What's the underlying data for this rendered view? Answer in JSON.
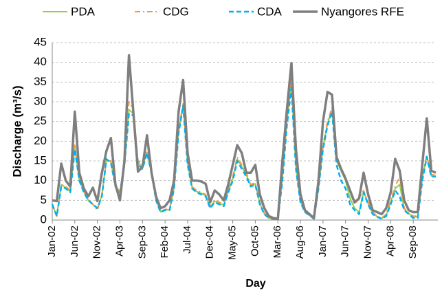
{
  "chart_data": {
    "type": "line",
    "x_label": "Day",
    "y_label": "Discharge (m³/s)",
    "categories": [
      "Jan-02",
      null,
      null,
      null,
      null,
      "Jun-02",
      null,
      null,
      null,
      null,
      "Nov-02",
      null,
      null,
      null,
      null,
      "Apr-03",
      null,
      null,
      null,
      null,
      "Sep-03",
      null,
      null,
      null,
      null,
      "Feb-04",
      null,
      null,
      null,
      null,
      "Jul-04",
      null,
      null,
      null,
      null,
      "Dec-04",
      null,
      null,
      null,
      null,
      "May-05",
      null,
      null,
      null,
      null,
      "Oct-05",
      null,
      null,
      null,
      null,
      "Mar-06",
      null,
      null,
      null,
      null,
      "Aug-06",
      null,
      null,
      null,
      null,
      "Jan-07",
      null,
      null,
      null,
      null,
      "Jun-07",
      null,
      null,
      null,
      null,
      "Nov-07",
      null,
      null,
      null,
      null,
      "Apr-08",
      null,
      null,
      null,
      null,
      "Sep-08",
      null,
      null,
      null,
      null,
      null
    ],
    "series": [
      {
        "name": "PDA",
        "color": "#92d050",
        "line_style": "solid",
        "line_width": 2,
        "values": [
          4,
          1,
          9,
          8.2,
          7.2,
          18.5,
          10.2,
          7.2,
          5,
          4,
          3,
          6.2,
          15.2,
          14.8,
          8.7,
          7,
          14.2,
          28,
          27,
          14.5,
          13.5,
          17.2,
          12.2,
          5.2,
          2.1,
          2.6,
          2.6,
          8.2,
          22.5,
          29,
          14.5,
          8.2,
          7.2,
          6.8,
          6.2,
          3.2,
          4.8,
          4.2,
          3.8,
          7.2,
          10.5,
          15.5,
          13.5,
          11.5,
          8.8,
          9.2,
          4.2,
          1.6,
          0.5,
          0.3,
          0.2,
          10.5,
          25,
          35,
          13.5,
          4.8,
          2.1,
          1.2,
          0.3,
          8.2,
          18.5,
          24.5,
          28,
          15,
          12.5,
          10,
          5.5,
          3,
          2,
          7.2,
          4.2,
          1.7,
          0.9,
          0.4,
          1.2,
          4.5,
          8,
          9,
          2.8,
          1.6,
          0.8,
          0.8,
          10.5,
          16.2,
          11.2,
          11.2
        ]
      },
      {
        "name": "CDG",
        "color": "#f79646",
        "line_style": "dash-dot",
        "line_width": 2,
        "values": [
          4,
          1,
          9,
          8.5,
          7.5,
          19,
          10.5,
          7.5,
          5,
          4,
          2.5,
          6.5,
          15,
          15,
          9,
          7,
          14.5,
          30,
          28,
          15,
          14,
          17.5,
          12.5,
          5.5,
          2.2,
          2.7,
          2.8,
          8.5,
          23,
          29.5,
          15,
          8.5,
          7.5,
          7,
          6.5,
          3.5,
          5,
          4.5,
          4,
          7.5,
          11,
          16,
          14,
          12,
          9,
          9.5,
          4.5,
          1.8,
          0.6,
          0.3,
          0.3,
          11,
          26,
          36,
          14,
          5,
          2.2,
          1.3,
          0.4,
          8.5,
          19,
          25,
          28.5,
          15.5,
          13,
          11,
          7,
          4,
          5.5,
          7.5,
          4.5,
          2,
          1,
          0.5,
          1.5,
          5,
          8.5,
          11,
          3,
          1.8,
          1,
          1,
          11,
          16.5,
          11.5,
          11.5
        ]
      },
      {
        "name": "CDA",
        "color": "#00b0f0",
        "line_style": "dash",
        "line_width": 2.5,
        "values": [
          4,
          1,
          8.5,
          8,
          7,
          18,
          10,
          7,
          5,
          4,
          3,
          6,
          15.5,
          14.5,
          8.5,
          7,
          14,
          27,
          26.5,
          14,
          13,
          17,
          12,
          5,
          2,
          2.5,
          2.5,
          8,
          22,
          29,
          14,
          8,
          7,
          6.5,
          6,
          3,
          4.5,
          4,
          3.5,
          7,
          10,
          15,
          13,
          11,
          8.5,
          9,
          4,
          1.5,
          0.5,
          0.3,
          0.2,
          10,
          24,
          33.5,
          13,
          4.5,
          2,
          1.2,
          0.3,
          8,
          18,
          24,
          27.5,
          14,
          10,
          8,
          4,
          2.5,
          1.5,
          7,
          4,
          1.5,
          0.8,
          0.3,
          1,
          4,
          7.5,
          6,
          2.5,
          1.5,
          0.5,
          0.5,
          10,
          16,
          11,
          11
        ]
      },
      {
        "name": "Nyangores RFE",
        "color": "#7f7f7f",
        "line_style": "solid",
        "line_width": 3.5,
        "values": [
          5,
          4.8,
          14.3,
          10,
          8.5,
          27.5,
          12,
          8,
          6,
          8.2,
          4.8,
          12,
          17.5,
          20.8,
          9,
          5,
          15,
          41.8,
          27,
          12.3,
          13.5,
          21.5,
          12,
          6,
          3,
          3.5,
          5,
          10,
          27.5,
          35.5,
          17,
          10,
          10,
          9.8,
          9.2,
          4.5,
          7.5,
          6.5,
          5,
          9,
          14,
          19,
          17,
          12,
          12,
          14,
          6.5,
          3,
          1,
          0.5,
          0.3,
          15,
          28,
          39.8,
          18,
          6.5,
          2.5,
          1.5,
          0.5,
          10,
          25,
          32.5,
          31.8,
          16,
          13,
          10.5,
          7.5,
          4.5,
          5.5,
          12,
          6.5,
          2.5,
          2,
          1.5,
          3,
          7,
          15.5,
          12.5,
          5,
          2.5,
          2,
          2,
          14,
          25.8,
          12.5,
          12
        ]
      }
    ],
    "ylim": [
      0,
      45
    ],
    "yticks": [
      0,
      5,
      10,
      15,
      20,
      25,
      30,
      35,
      40,
      45
    ],
    "grid": true,
    "legend": "top"
  }
}
